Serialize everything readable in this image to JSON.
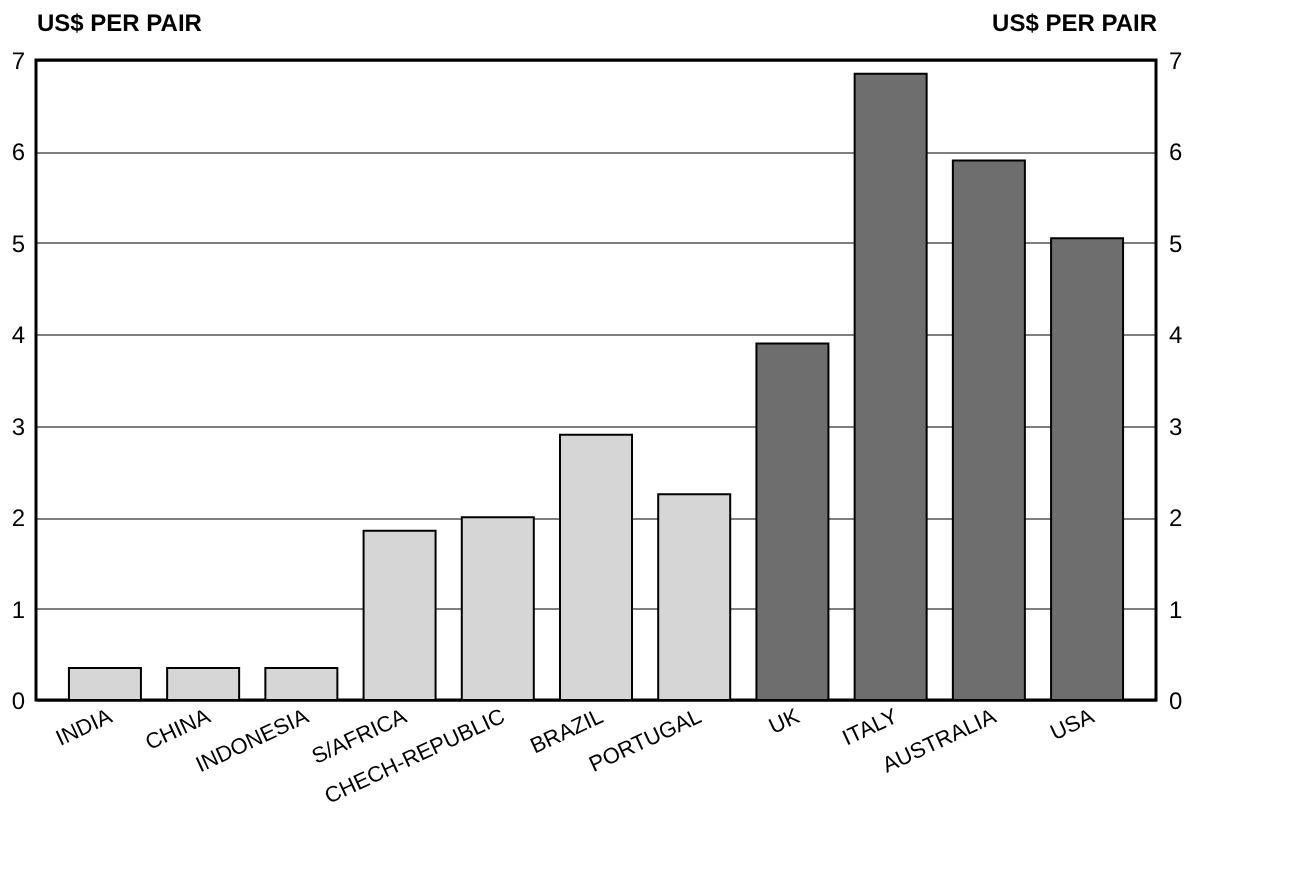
{
  "chart_data": {
    "type": "bar",
    "categories": [
      "INDIA",
      "CHINA",
      "INDONESIA",
      "S/AFRICA",
      "CHECH-REPUBLIC",
      "BRAZIL",
      "PORTUGAL",
      "UK",
      "ITALY",
      "AUSTRALIA",
      "USA"
    ],
    "values": [
      0.35,
      0.35,
      0.35,
      1.85,
      2.0,
      2.9,
      2.25,
      3.9,
      6.85,
      5.9,
      5.05
    ],
    "colors": [
      "#d6d6d6",
      "#d6d6d6",
      "#d6d6d6",
      "#d6d6d6",
      "#d6d6d6",
      "#d6d6d6",
      "#d6d6d6",
      "#6e6e6e",
      "#6e6e6e",
      "#6e6e6e",
      "#6e6e6e"
    ],
    "ylabel": "US$ PER PAIR",
    "y2label": "US$ PER PAIR",
    "ylim": [
      0,
      7
    ],
    "yticks": [
      0,
      1,
      2,
      3,
      4,
      5,
      6,
      7
    ],
    "y2lim": [
      0,
      7
    ],
    "y2ticks": [
      0,
      1,
      2,
      3,
      4,
      5,
      6,
      7
    ],
    "grid": "y"
  }
}
